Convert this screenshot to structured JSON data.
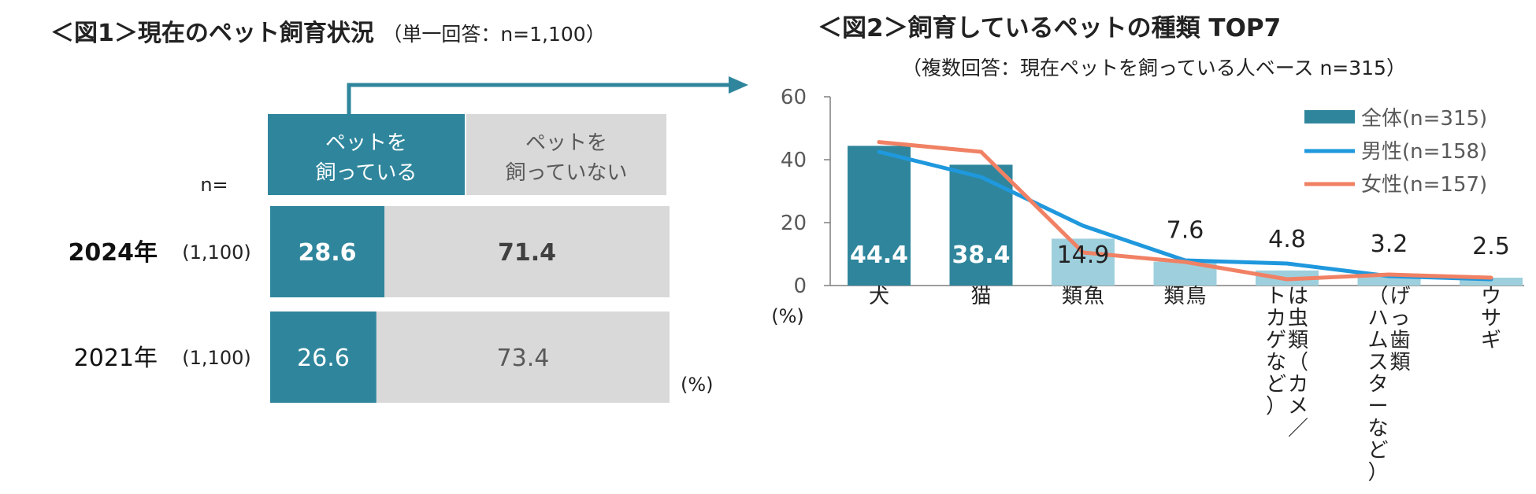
{
  "colors": {
    "teal": "#2f869c",
    "light_blue": "#9ecfdd",
    "gray_bar": "#d9d9d9",
    "male_line": "#1f98dd",
    "female_line": "#f08164",
    "axis": "#7f7f7f",
    "text_gray": "#595959"
  },
  "chart_data": [
    {
      "type": "bar",
      "stacked": true,
      "orientation": "horizontal",
      "title_main": "＜図1＞現在のペット飼育状況",
      "title_sub": "（単一回答：n=1,100）",
      "n_label": "n=",
      "unit": "(%)",
      "legend": [
        {
          "line1": "ペットを",
          "line2": "飼っている"
        },
        {
          "line1": "ペットを",
          "line2": "飼っていない"
        }
      ],
      "rows": [
        {
          "year": "2024年",
          "n": "(1,100)",
          "keeping": 28.6,
          "not_keeping": 71.4,
          "highlight": true
        },
        {
          "year": "2021年",
          "n": "(1,100)",
          "keeping": 26.6,
          "not_keeping": 73.4,
          "highlight": false
        }
      ]
    },
    {
      "type": "bar",
      "title_main": "＜図2＞飼育しているペットの種類 TOP7",
      "title_sub": "（複数回答：現在ペットを飼っている人ベース n=315）",
      "ylabel": "(%)",
      "ylim": [
        0,
        60
      ],
      "yticks": [
        "0",
        "20",
        "40",
        "60"
      ],
      "categories": [
        {
          "lines": [
            "犬"
          ]
        },
        {
          "lines": [
            "猫"
          ]
        },
        {
          "lines": [
            "魚",
            "類"
          ]
        },
        {
          "lines": [
            "鳥",
            "類"
          ]
        },
        {
          "lines": [
            "は虫類（カメ／",
            "トカゲなど）"
          ]
        },
        {
          "lines": [
            "げっ歯類",
            "（ハムスターなど）"
          ]
        },
        {
          "lines": [
            "ウサギ"
          ]
        }
      ],
      "series": [
        {
          "name": "全体(n=315)",
          "kind": "bar",
          "values": [
            44.4,
            38.4,
            14.9,
            7.6,
            4.8,
            3.2,
            2.5
          ],
          "labels": [
            "44.4",
            "38.4",
            "14.9",
            "7.6",
            "4.8",
            "3.2",
            "2.5"
          ]
        },
        {
          "name": "男性(n=158)",
          "kind": "line",
          "values": [
            42.5,
            34.5,
            19,
            8,
            7,
            3,
            2
          ]
        },
        {
          "name": "女性(n=157)",
          "kind": "line",
          "values": [
            45.6,
            42.5,
            10.5,
            7.5,
            2,
            3.5,
            2.5
          ]
        }
      ]
    }
  ]
}
